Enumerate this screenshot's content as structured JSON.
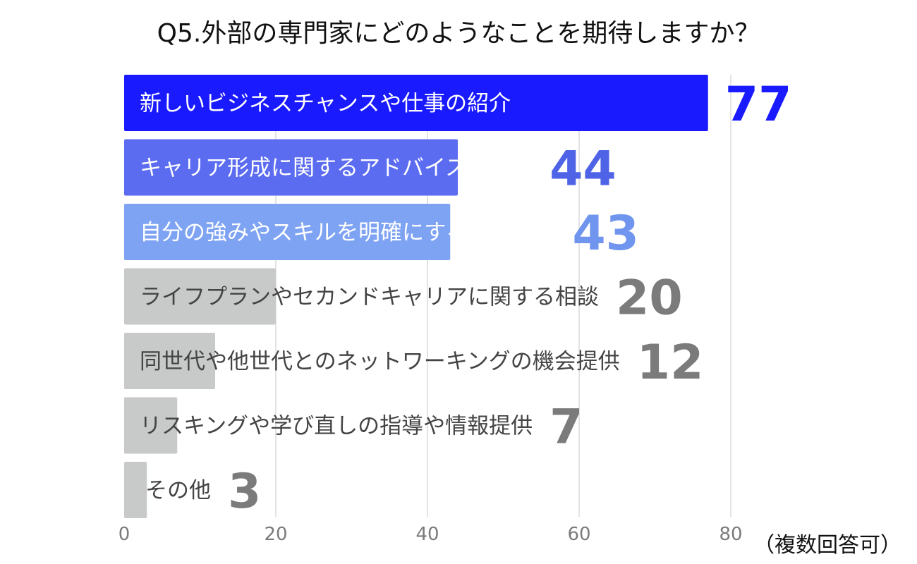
{
  "chart_data": {
    "type": "bar",
    "orientation": "horizontal",
    "title": "Q5.外部の専門家にどのようなことを期待しますか？",
    "categories": [
      "新しいビジネスチャンスや仕事の紹介",
      "キャリア形成に関するアドバイスや指導",
      "自分の強みやスキルを明確にするサポート",
      "ライフプランやセカンドキャリアに関する相談",
      "同世代や他世代とのネットワーキングの機会提供",
      "リスキングや学び直しの指導や情報提供",
      "その他"
    ],
    "values": [
      77,
      44,
      43,
      20,
      12,
      7,
      3
    ],
    "value_labels": [
      "77",
      "44",
      "43",
      "20",
      "12",
      "7",
      "3"
    ],
    "xlim": [
      0,
      80
    ],
    "x_ticks": [
      "0",
      "20",
      "40",
      "60",
      "80"
    ],
    "grid": "vertical",
    "colors": {
      "bars": [
        "#1a1aff",
        "#5b6cf0",
        "#7fa3f3",
        "#c8c9c9",
        "#c8c9c9",
        "#c8c9c9",
        "#c8c9c9"
      ],
      "value_labels": [
        "#1a1aff",
        "#4f63e6",
        "#6f95ee",
        "#7b7b7b",
        "#7b7b7b",
        "#7b7b7b",
        "#7b7b7b"
      ],
      "category_labels": [
        "#ffffff",
        "#ffffff",
        "#ffffff",
        "#444444",
        "#444444",
        "#444444",
        "#444444"
      ],
      "gridline": "#d0d0d0",
      "tick_label": "#7b7b7b"
    }
  },
  "note": "（複数回答可）"
}
